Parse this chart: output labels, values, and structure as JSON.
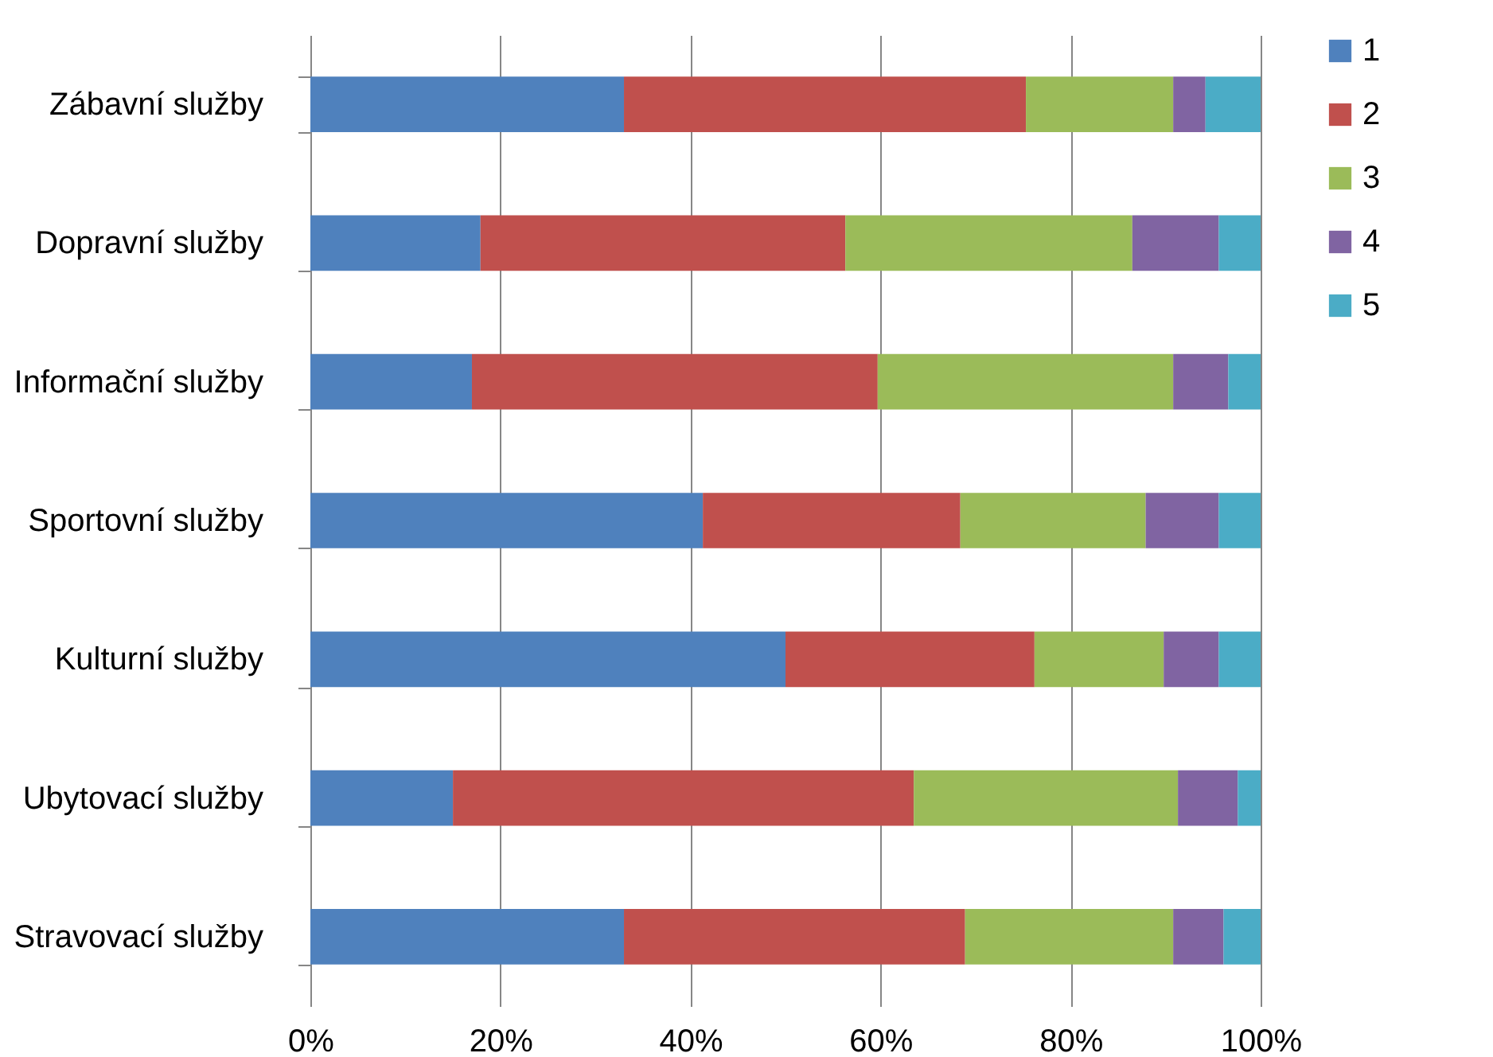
{
  "chart_data": {
    "type": "bar",
    "orientation": "horizontal",
    "stacked": true,
    "categories": [
      "Zábavní služby",
      "Dopravní služby",
      "Informační služby",
      "Sportovní služby",
      "Kulturní služby",
      "Ubytovací služby",
      "Stravovací služby"
    ],
    "series": [
      {
        "name": "1",
        "color": "#4f81bd",
        "values": [
          33.0,
          17.9,
          17.0,
          41.3,
          50.0,
          15.0,
          33.0
        ]
      },
      {
        "name": "2",
        "color": "#c0504d",
        "values": [
          42.3,
          38.4,
          42.7,
          27.1,
          26.2,
          48.5,
          35.9
        ]
      },
      {
        "name": "3",
        "color": "#9bbb59",
        "values": [
          15.5,
          30.2,
          31.1,
          19.5,
          13.6,
          27.8,
          21.9
        ]
      },
      {
        "name": "4",
        "color": "#8064a2",
        "values": [
          3.4,
          9.1,
          5.8,
          7.7,
          5.8,
          6.3,
          5.3
        ]
      },
      {
        "name": "5",
        "color": "#4bacc6",
        "values": [
          5.8,
          4.4,
          3.4,
          4.4,
          4.4,
          2.4,
          3.9
        ]
      }
    ],
    "xlim": [
      0,
      100
    ],
    "xticks": [
      {
        "value": 0,
        "label": "0%"
      },
      {
        "value": 20,
        "label": "20%"
      },
      {
        "value": 40,
        "label": "40%"
      },
      {
        "value": 60,
        "label": "60%"
      },
      {
        "value": 80,
        "label": "80%"
      },
      {
        "value": 100,
        "label": "100%"
      }
    ],
    "grid": "x",
    "legend": "right"
  }
}
